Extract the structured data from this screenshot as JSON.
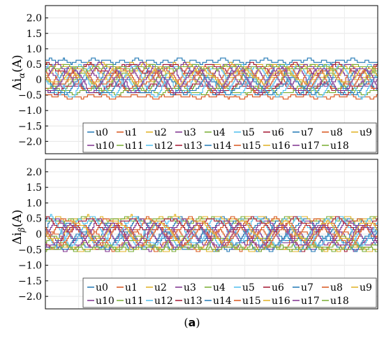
{
  "figure": {
    "caption_open": "(",
    "caption_letter": "a",
    "caption_close": ")"
  },
  "chart_data": [
    {
      "type": "line",
      "ylabel_symbol": "Δi",
      "ylabel_sub": "α",
      "ylabel_unit": "(A)",
      "ylim": [
        -2.4,
        2.4
      ],
      "yticks": [
        "2.0",
        "1.5",
        "1.0",
        "0.5",
        "0",
        "−0.5",
        "−1.0",
        "−1.5",
        "−2.0"
      ],
      "ytick_values": [
        2.0,
        1.5,
        1.0,
        0.5,
        0,
        -0.5,
        -1.0,
        -1.5,
        -2.0
      ],
      "grid": true,
      "legend_position": "bottom-right",
      "series": [
        {
          "name": "u0",
          "color": "#1f77b4",
          "level": 0.6,
          "amp": 0.04
        },
        {
          "name": "u1",
          "color": "#d9541a",
          "level": -0.55,
          "amp": 0.03
        },
        {
          "name": "u2",
          "color": "#e0b020",
          "level": 0.25,
          "amp": 0.25
        },
        {
          "name": "u3",
          "color": "#7e2f8e",
          "level": 0.1,
          "amp": 0.35
        },
        {
          "name": "u4",
          "color": "#77ac30",
          "level": -0.1,
          "amp": 0.3
        },
        {
          "name": "u5",
          "color": "#4dbeee",
          "level": 0.0,
          "amp": 0.45
        },
        {
          "name": "u6",
          "color": "#a2142f",
          "level": -0.3,
          "amp": 0.15
        },
        {
          "name": "u7",
          "color": "#1f77b4",
          "level": 0.0,
          "amp": 0.45
        },
        {
          "name": "u8",
          "color": "#d9541a",
          "level": 0.05,
          "amp": 0.4
        },
        {
          "name": "u9",
          "color": "#e0b020",
          "level": 0.3,
          "amp": 0.2
        },
        {
          "name": "u10",
          "color": "#7e2f8e",
          "level": 0.15,
          "amp": 0.35
        },
        {
          "name": "u11",
          "color": "#77ac30",
          "level": -0.35,
          "amp": 0.1
        },
        {
          "name": "u12",
          "color": "#4dbeee",
          "level": -0.05,
          "amp": 0.5
        },
        {
          "name": "u13",
          "color": "#a2142f",
          "level": 0.35,
          "amp": 0.15
        },
        {
          "name": "u14",
          "color": "#1f77b4",
          "level": -0.2,
          "amp": 0.25
        },
        {
          "name": "u15",
          "color": "#d9541a",
          "level": 0.1,
          "amp": 0.3
        },
        {
          "name": "u16",
          "color": "#e0b020",
          "level": 0.15,
          "amp": 0.25
        },
        {
          "name": "u17",
          "color": "#7e2f8e",
          "level": 0.0,
          "amp": 0.4
        },
        {
          "name": "u18",
          "color": "#77ac30",
          "level": 0.4,
          "amp": 0.05
        }
      ]
    },
    {
      "type": "line",
      "ylabel_symbol": "Δi",
      "ylabel_sub": "β",
      "ylabel_unit": "(A)",
      "ylim": [
        -2.4,
        2.4
      ],
      "yticks": [
        "2.0",
        "1.5",
        "1.0",
        "0.5",
        "0",
        "−0.5",
        "−1.0",
        "−1.5",
        "−2.0"
      ],
      "ytick_values": [
        2.0,
        1.5,
        1.0,
        0.5,
        0,
        -0.5,
        -1.0,
        -1.5,
        -2.0
      ],
      "grid": true,
      "legend_position": "bottom-right",
      "series": [
        {
          "name": "u0",
          "color": "#1f77b4",
          "level": 0.15,
          "amp": 0.35
        },
        {
          "name": "u1",
          "color": "#d9541a",
          "level": -0.2,
          "amp": 0.3
        },
        {
          "name": "u2",
          "color": "#e0b020",
          "level": 0.5,
          "amp": 0.05
        },
        {
          "name": "u3",
          "color": "#7e2f8e",
          "level": -0.15,
          "amp": 0.35
        },
        {
          "name": "u4",
          "color": "#77ac30",
          "level": 0.45,
          "amp": 0.06
        },
        {
          "name": "u5",
          "color": "#4dbeee",
          "level": 0.0,
          "amp": 0.45
        },
        {
          "name": "u6",
          "color": "#a2142f",
          "level": -0.1,
          "amp": 0.4
        },
        {
          "name": "u7",
          "color": "#1f77b4",
          "level": -0.05,
          "amp": 0.45
        },
        {
          "name": "u8",
          "color": "#d9541a",
          "level": 0.2,
          "amp": 0.3
        },
        {
          "name": "u9",
          "color": "#e0b020",
          "level": -0.45,
          "amp": 0.08
        },
        {
          "name": "u10",
          "color": "#7e2f8e",
          "level": 0.05,
          "amp": 0.4
        },
        {
          "name": "u11",
          "color": "#77ac30",
          "level": -0.3,
          "amp": 0.2
        },
        {
          "name": "u12",
          "color": "#4dbeee",
          "level": 0.1,
          "amp": 0.45
        },
        {
          "name": "u13",
          "color": "#a2142f",
          "level": 0.3,
          "amp": 0.2
        },
        {
          "name": "u14",
          "color": "#1f77b4",
          "level": -0.2,
          "amp": 0.3
        },
        {
          "name": "u15",
          "color": "#d9541a",
          "level": 0.0,
          "amp": 0.35
        },
        {
          "name": "u16",
          "color": "#e0b020",
          "level": 0.1,
          "amp": 0.3
        },
        {
          "name": "u17",
          "color": "#7e2f8e",
          "level": -0.05,
          "amp": 0.35
        },
        {
          "name": "u18",
          "color": "#77ac30",
          "level": -0.45,
          "amp": 0.05
        }
      ]
    }
  ]
}
